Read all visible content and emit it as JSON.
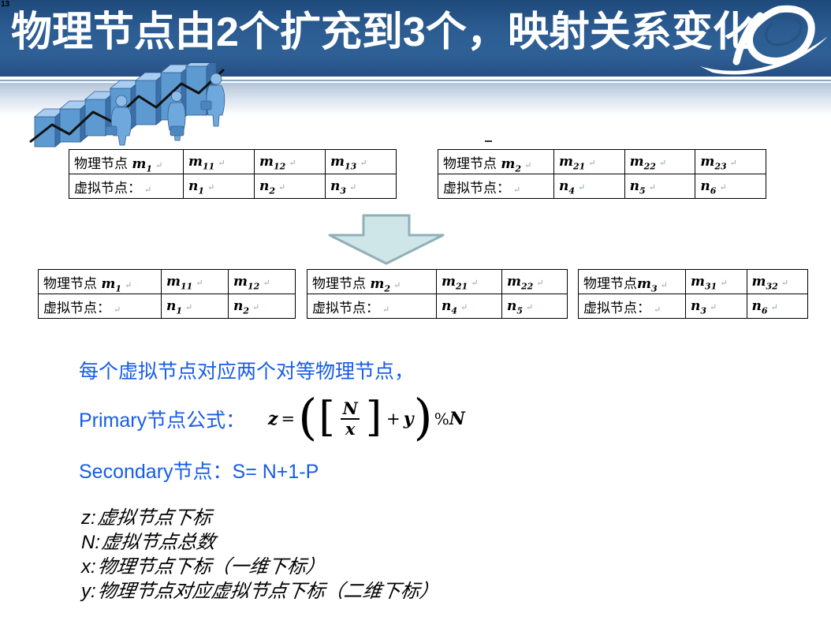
{
  "slide": {
    "page_number": "13",
    "title": "物理节点由2个扩充到3个，映射关系变化"
  },
  "colors": {
    "header_blue": "#2c5c92",
    "accent_text_blue": "#175ce8",
    "arrow_fill": "#cfe6e9",
    "arrow_border": "#8fb0b6",
    "table_border": "#000000"
  },
  "tables": {
    "return_mark": "↵",
    "list": [
      {
        "name": "top-left",
        "rows": [
          [
            {
              "pre": "物理节点 ",
              "v": "m",
              "sub": "1"
            },
            {
              "v": "m",
              "sub": "11"
            },
            {
              "v": "m",
              "sub": "12"
            },
            {
              "v": "m",
              "sub": "13"
            }
          ],
          [
            {
              "pre": "虚拟节点："
            },
            {
              "v": "n",
              "sub": "1"
            },
            {
              "v": "n",
              "sub": "2"
            },
            {
              "v": "n",
              "sub": "3"
            }
          ]
        ]
      },
      {
        "name": "top-right",
        "rows": [
          [
            {
              "pre": "物理节点 ",
              "v": "m",
              "sub": "2"
            },
            {
              "v": "m",
              "sub": "21"
            },
            {
              "v": "m",
              "sub": "22"
            },
            {
              "v": "m",
              "sub": "23"
            }
          ],
          [
            {
              "pre": "虚拟节点："
            },
            {
              "v": "n",
              "sub": "4"
            },
            {
              "v": "n",
              "sub": "5"
            },
            {
              "v": "n",
              "sub": "6"
            }
          ]
        ]
      },
      {
        "name": "bottom-left",
        "rows": [
          [
            {
              "pre": "物理节点 ",
              "v": "m",
              "sub": "1"
            },
            {
              "v": "m",
              "sub": "11"
            },
            {
              "v": "m",
              "sub": "12"
            }
          ],
          [
            {
              "pre": "虚拟节点："
            },
            {
              "v": "n",
              "sub": "1"
            },
            {
              "v": "n",
              "sub": "2"
            }
          ]
        ]
      },
      {
        "name": "bottom-middle",
        "rows": [
          [
            {
              "pre": "物理节点 ",
              "v": "m",
              "sub": "2"
            },
            {
              "v": "m",
              "sub": "21"
            },
            {
              "v": "m",
              "sub": "22"
            }
          ],
          [
            {
              "pre": "虚拟节点："
            },
            {
              "v": "n",
              "sub": "4"
            },
            {
              "v": "n",
              "sub": "5"
            }
          ]
        ]
      },
      {
        "name": "bottom-right",
        "rows": [
          [
            {
              "pre": "物理节点",
              "v": "m",
              "sub": "3"
            },
            {
              "v": "m",
              "sub": "31"
            },
            {
              "v": "m",
              "sub": "32"
            }
          ],
          [
            {
              "pre": "虚拟节点："
            },
            {
              "v": "n",
              "sub": "3"
            },
            {
              "v": "n",
              "sub": "6"
            }
          ]
        ]
      }
    ]
  },
  "notes": {
    "line1": "每个虚拟节点对应两个对等物理节点，",
    "primary_label": "Primary节点公式：",
    "secondary": "Secondary节点：S= N+1-P",
    "definitions": [
      {
        "symbol": "z:",
        "text": "虚拟节点下标"
      },
      {
        "symbol": "N:",
        "text": "虚拟节点总数"
      },
      {
        "symbol": "x:",
        "text": "物理节点下标（一维下标）"
      },
      {
        "symbol": "y:",
        "text": "物理节点对应虚拟节点下标（二维下标）"
      }
    ]
  },
  "formula": {
    "lhs": "z",
    "eq": "=",
    "open_paren": "(",
    "open_bracket": "[",
    "numerator": "N",
    "denominator": "x",
    "close_bracket": "]",
    "plus": "+",
    "y": "y",
    "close_paren": ")",
    "mod_sign": "%",
    "mod_var": "N"
  }
}
